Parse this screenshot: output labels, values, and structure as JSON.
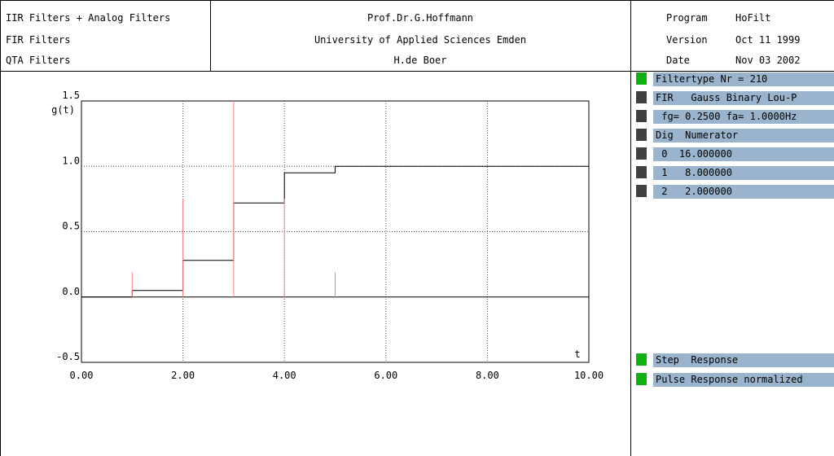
{
  "header": {
    "left": [
      "IIR Filters + Analog Filters",
      "FIR Filters",
      "QTA Filters"
    ],
    "center": [
      "Prof.Dr.G.Hoffmann",
      "University of Applied Sciences Emden",
      "H.de Boer"
    ],
    "info": [
      {
        "label": "Program",
        "value": "HoFilt"
      },
      {
        "label": "Version",
        "value": "Oct 11 1999"
      },
      {
        "label": "Date",
        "value": "Nov 03 2002"
      }
    ]
  },
  "panel": {
    "items": [
      {
        "text": "Filtertype Nr = 210",
        "marker": "#10b010"
      },
      {
        "text": "FIR   Gauss Binary Lou-P",
        "marker": "#404040"
      },
      {
        "text": " fg= 0.2500 fa= 1.0000Hz",
        "marker": "#404040"
      },
      {
        "text": "Dig  Numerator",
        "marker": "#404040"
      },
      {
        "text": " 0  16.000000",
        "marker": "#404040"
      },
      {
        "text": " 1   8.000000",
        "marker": "#404040"
      },
      {
        "text": " 2   2.000000",
        "marker": "#404040"
      }
    ],
    "modes": [
      {
        "text": "Step  Response",
        "marker": "#10b010"
      },
      {
        "text": "Pulse Response normalized",
        "marker": "#10b010"
      }
    ]
  },
  "colors": {
    "panel_bg": "#99b4cc",
    "active": "#10b010",
    "inactive": "#404040",
    "pulse": "#ff8080"
  },
  "chart_data": {
    "type": "line",
    "ylabel": "g(t)",
    "xlabel": "t",
    "xlim": [
      0,
      10
    ],
    "ylim": [
      -0.5,
      1.5
    ],
    "x_ticks": [
      "0.00",
      "2.00",
      "4.00",
      "6.00",
      "8.00",
      "10.00"
    ],
    "y_ticks": [
      "-0.5",
      "0.0",
      "0.5",
      "1.0",
      "1.5"
    ],
    "grid": true,
    "series": [
      {
        "kind": "step",
        "color": "#000000",
        "x": [
          0,
          1,
          2,
          3,
          4,
          5,
          10
        ],
        "y": [
          0,
          0.05,
          0.28,
          0.72,
          0.95,
          1.0,
          1.0
        ]
      },
      {
        "kind": "stem",
        "color": "#ff8080",
        "x": [
          1,
          2,
          3,
          4,
          5
        ],
        "y": [
          0.19,
          0.75,
          1.5,
          0.75,
          0.19
        ]
      }
    ]
  }
}
